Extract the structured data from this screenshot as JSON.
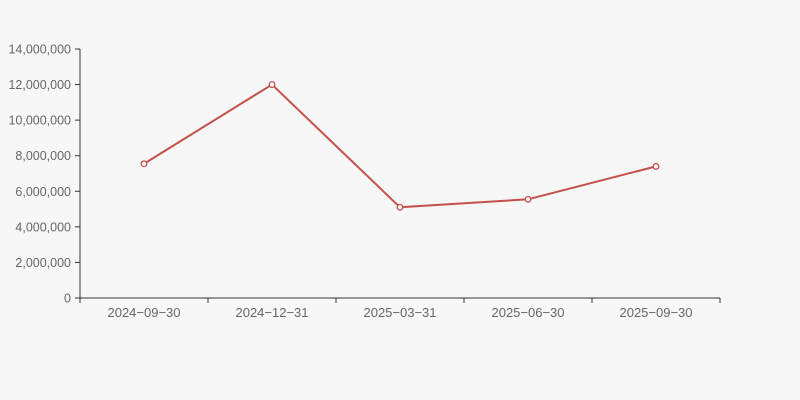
{
  "colors": {
    "background": "#f7f7f7",
    "axis_line": "#333333",
    "tick_text": "#666666",
    "series_line": "#c5504b",
    "marker_fill": "#ffffff"
  },
  "chart_data": {
    "type": "line",
    "title": "",
    "xlabel": "",
    "ylabel": "",
    "categories": [
      "2024−09−30",
      "2024−12−31",
      "2025−03−31",
      "2025−06−30",
      "2025−09−30"
    ],
    "series": [
      {
        "name": "value",
        "values": [
          7550000,
          12000000,
          5100000,
          5550000,
          7400000
        ]
      }
    ],
    "ylim": [
      0,
      14000000
    ],
    "ytick_step": 2000000,
    "ytick_labels": [
      "0",
      "2,000,000",
      "4,000,000",
      "6,000,000",
      "8,000,000",
      "10,000,000",
      "12,000,000",
      "14,000,000"
    ],
    "grid": "off",
    "legend": "none",
    "marker_style": "open-circle"
  }
}
